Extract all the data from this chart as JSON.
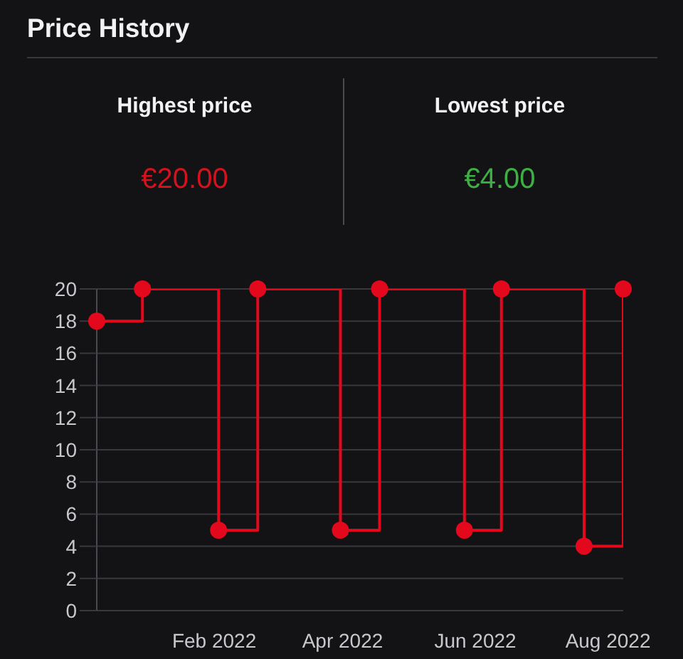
{
  "chart_data": [
    {
      "type": "other",
      "title": "Price History",
      "categories": [
        "Highest price",
        "Lowest price"
      ],
      "value_labels": [
        "€20.00",
        "€4.00"
      ],
      "colors": [
        "#d4121e",
        "#3cb043"
      ]
    },
    {
      "type": "step",
      "x": [
        "2021-12-09",
        "2021-12-30",
        "2022-02-03",
        "2022-02-21",
        "2022-03-31",
        "2022-04-18",
        "2022-05-27",
        "2022-06-13",
        "2022-07-21",
        "2022-08-08"
      ],
      "values": [
        18,
        20,
        5,
        20,
        5,
        20,
        5,
        20,
        4,
        20
      ],
      "color": "#e3081c",
      "xlim": [
        "2021-12-09",
        "2022-08-08"
      ],
      "xticks": [
        {
          "value": "2022-02-01",
          "label": "Feb 2022"
        },
        {
          "value": "2022-04-01",
          "label": "Apr 2022"
        },
        {
          "value": "2022-06-01",
          "label": "Jun 2022"
        },
        {
          "value": "2022-08-01",
          "label": "Aug 2022"
        }
      ],
      "ylim": [
        0,
        20
      ],
      "yticks": [
        0,
        2,
        4,
        6,
        8,
        10,
        12,
        14,
        16,
        18,
        20
      ],
      "grid": "y",
      "marker": "circle"
    }
  ]
}
